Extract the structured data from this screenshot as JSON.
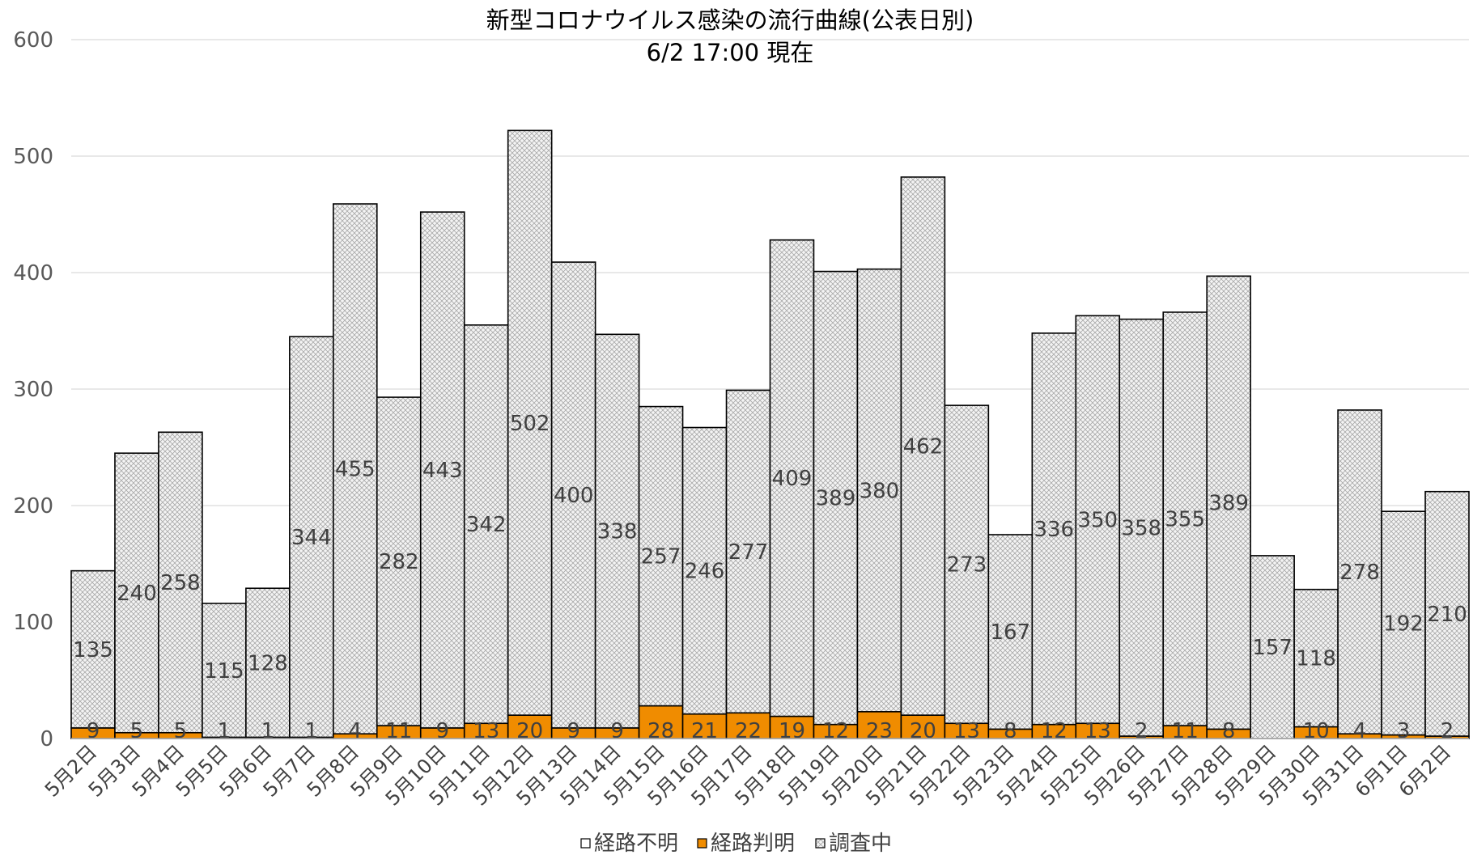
{
  "chart_data": {
    "type": "bar",
    "stacked": true,
    "title": "新型コロナウイルス感染の流行曲線(公表日別)",
    "subtitle": "6/2  17:00 現在",
    "xlabel": "",
    "ylabel": "",
    "ylim": [
      0,
      600
    ],
    "yticks": [
      0,
      100,
      200,
      300,
      400,
      500,
      600
    ],
    "grid": true,
    "legend_position": "bottom",
    "categories": [
      "5月2日",
      "5月3日",
      "5月4日",
      "5月5日",
      "5月6日",
      "5月7日",
      "5月8日",
      "5月9日",
      "5月10日",
      "5月11日",
      "5月12日",
      "5月13日",
      "5月14日",
      "5月15日",
      "5月16日",
      "5月17日",
      "5月18日",
      "5月19日",
      "5月20日",
      "5月21日",
      "5月22日",
      "5月23日",
      "5月24日",
      "5月25日",
      "5月26日",
      "5月27日",
      "5月28日",
      "5月29日",
      "5月30日",
      "5月31日",
      "6月1日",
      "6月2日"
    ],
    "series": [
      {
        "name": "経路不明",
        "color": "#ffffff",
        "values": [
          135,
          240,
          258,
          115,
          128,
          344,
          455,
          282,
          443,
          342,
          502,
          400,
          338,
          257,
          246,
          277,
          409,
          389,
          380,
          462,
          273,
          167,
          336,
          350,
          358,
          355,
          389,
          157,
          118,
          278,
          192,
          210
        ]
      },
      {
        "name": "経路判明",
        "color": "#f08c00",
        "values": [
          9,
          5,
          5,
          1,
          1,
          1,
          4,
          11,
          9,
          13,
          20,
          9,
          9,
          28,
          21,
          22,
          19,
          12,
          23,
          20,
          13,
          8,
          12,
          13,
          2,
          11,
          8,
          0,
          10,
          4,
          3,
          2
        ]
      },
      {
        "name": "調査中",
        "color": "#e6e6e6",
        "values": [
          0,
          0,
          0,
          0,
          0,
          0,
          0,
          0,
          0,
          0,
          0,
          0,
          0,
          0,
          0,
          0,
          0,
          0,
          0,
          0,
          0,
          0,
          0,
          0,
          0,
          0,
          0,
          0,
          0,
          0,
          0,
          0
        ]
      }
    ]
  }
}
